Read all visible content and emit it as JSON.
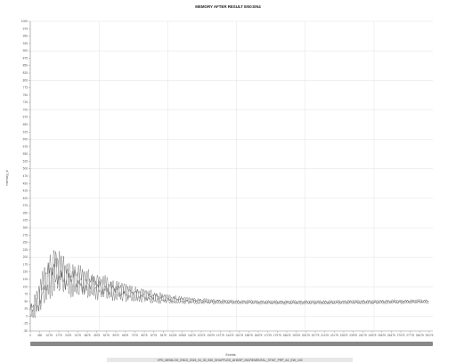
{
  "chart_data": {
    "type": "line",
    "title": "MEMORY AFTER RESULT EN0:EN4",
    "xlabel": "Events",
    "ylabel": "memory_d",
    "footer_label": "VPD_MEMLOG_EN10_2015_04_30_BIG_SHUFFLED_AHDSP_INCREMENTAL_STMT_PRP_A1_EW_100",
    "xlim": [
      0,
      29275
    ],
    "ylim": [
      -50,
      1000
    ],
    "grid": true,
    "legend": "none",
    "x_ticks": [
      "0",
      "450",
      "1075",
      "1775",
      "2475",
      "3175",
      "3875",
      "4575",
      "5275",
      "5975",
      "6675",
      "7375",
      "8075",
      "8775",
      "9475",
      "10225",
      "10925",
      "11675",
      "12375",
      "13075",
      "13775",
      "14475",
      "15175",
      "15875",
      "16575",
      "17275",
      "17975",
      "18675",
      "19375",
      "20075",
      "20775",
      "21475",
      "22175",
      "22875",
      "23575",
      "24275",
      "24975",
      "25675",
      "26375",
      "27075",
      "27775",
      "28475",
      "29175"
    ],
    "y_ticks": [
      "1000",
      "975",
      "950",
      "925",
      "900",
      "875",
      "850",
      "825",
      "800",
      "775",
      "750",
      "725",
      "700",
      "675",
      "650",
      "625",
      "600",
      "575",
      "550",
      "525",
      "500",
      "475",
      "450",
      "425",
      "400",
      "375",
      "350",
      "325",
      "300",
      "275",
      "250",
      "225",
      "200",
      "175",
      "150",
      "125",
      "100",
      "75",
      "50",
      "25",
      "0",
      "-25",
      "-50"
    ],
    "series": [
      {
        "x": [
          0,
          300,
          600,
          900,
          1200,
          1500,
          1800,
          2100,
          2500,
          3000,
          3500,
          4000,
          4600,
          5200,
          5800,
          6400,
          7000,
          7600,
          8200,
          8800,
          9400,
          10000,
          10600,
          11200,
          11800,
          12400,
          13000,
          14000,
          15000,
          16000,
          17000,
          18000,
          19000,
          20000,
          21000,
          22000,
          23000,
          24000,
          25000,
          26000,
          27000,
          28000,
          29000
        ],
        "y": [
          18,
          30,
          55,
          90,
          120,
          140,
          160,
          150,
          135,
          125,
          120,
          112,
          105,
          98,
          92,
          86,
          80,
          75,
          70,
          66,
          62,
          58,
          56,
          54,
          52,
          51,
          50,
          49,
          48,
          48,
          47,
          47,
          47,
          47,
          47,
          47,
          48,
          48,
          48,
          49,
          49,
          50,
          50
        ],
        "amplitude": [
          30,
          45,
          60,
          70,
          80,
          85,
          90,
          80,
          70,
          65,
          60,
          55,
          50,
          46,
          42,
          38,
          34,
          30,
          27,
          24,
          21,
          18,
          16,
          14,
          12,
          11,
          10,
          9,
          8,
          8,
          8,
          8,
          8,
          8,
          8,
          8,
          8,
          8,
          8,
          8,
          8,
          8,
          8
        ],
        "color": "#222222"
      }
    ],
    "colors": {
      "grid": "#e2e2e2",
      "axis": "#888888",
      "line": "#222222",
      "scrollbar": "#888888",
      "footer_bar": "#e8e8e8"
    }
  }
}
